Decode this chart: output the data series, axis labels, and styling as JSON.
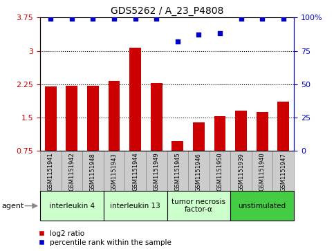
{
  "title": "GDS5262 / A_23_P4808",
  "samples": [
    "GSM1151941",
    "GSM1151942",
    "GSM1151948",
    "GSM1151943",
    "GSM1151944",
    "GSM1151949",
    "GSM1151945",
    "GSM1151946",
    "GSM1151950",
    "GSM1151939",
    "GSM1151940",
    "GSM1151947"
  ],
  "log2_ratio": [
    2.2,
    2.22,
    2.22,
    2.32,
    3.07,
    2.27,
    0.97,
    1.38,
    1.52,
    1.65,
    1.62,
    1.85
  ],
  "percentile_rank": [
    99,
    99,
    99,
    99,
    99,
    99,
    82,
    87,
    88,
    99,
    99,
    99
  ],
  "bar_color": "#cc0000",
  "dot_color": "#0000cc",
  "ylim_left": [
    0.75,
    3.75
  ],
  "ylim_right": [
    0,
    100
  ],
  "yticks_left": [
    0.75,
    1.5,
    2.25,
    3.0,
    3.75
  ],
  "ytick_labels_left": [
    "0.75",
    "1.5",
    "2.25",
    "3",
    "3.75"
  ],
  "yticks_right": [
    0,
    25,
    50,
    75,
    100
  ],
  "ytick_labels_right": [
    "0",
    "25",
    "50",
    "75",
    "100%"
  ],
  "hlines": [
    1.5,
    2.25,
    3.0
  ],
  "groups": [
    {
      "label": "interleukin 4",
      "start": 0,
      "end": 3,
      "color": "#ccffcc"
    },
    {
      "label": "interleukin 13",
      "start": 3,
      "end": 6,
      "color": "#ccffcc"
    },
    {
      "label": "tumor necrosis\nfactor-α",
      "start": 6,
      "end": 9,
      "color": "#ccffcc"
    },
    {
      "label": "unstimulated",
      "start": 9,
      "end": 12,
      "color": "#44cc44"
    }
  ],
  "legend_items": [
    {
      "label": "log2 ratio",
      "color": "#cc0000",
      "marker": "s"
    },
    {
      "label": "percentile rank within the sample",
      "color": "#0000cc",
      "marker": "s"
    }
  ],
  "agent_label": "agent",
  "bar_bottom": 0.75,
  "bar_width": 0.55,
  "sample_box_color": "#cccccc",
  "sample_box_edge": "#888888"
}
